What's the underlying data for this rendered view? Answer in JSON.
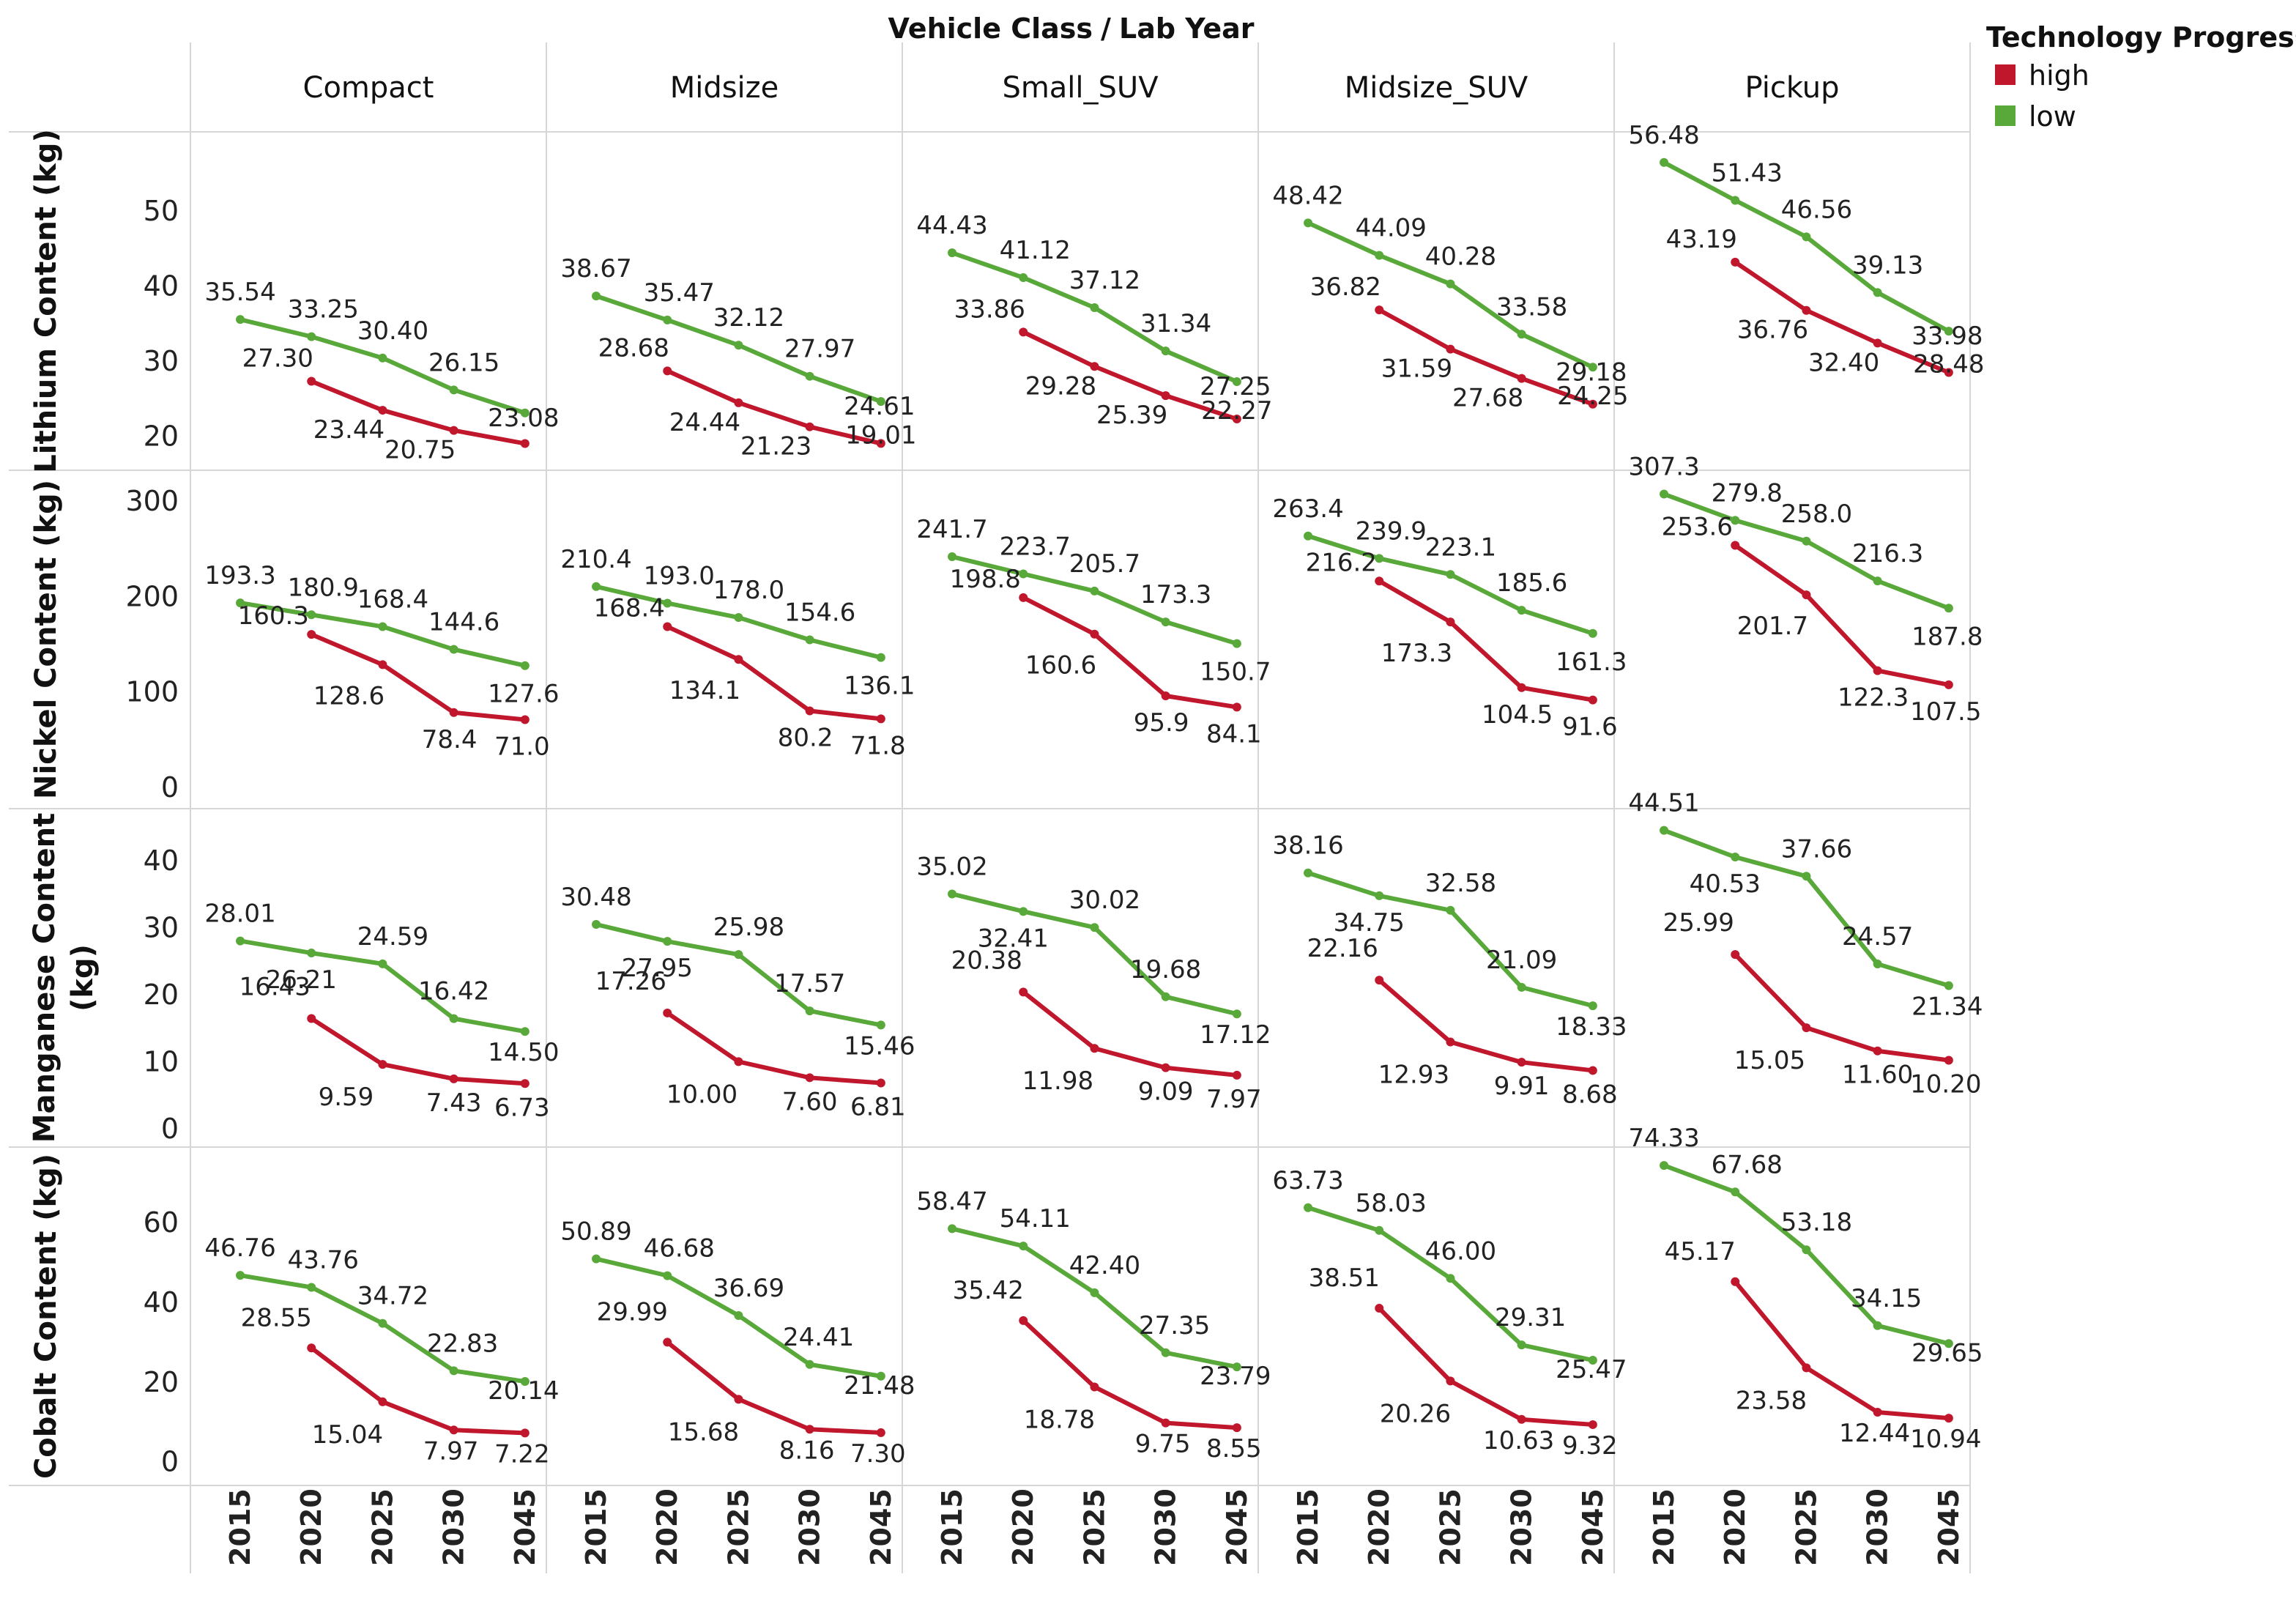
{
  "chart_data": {
    "type": "line",
    "title": "Vehicle Class",
    "title_separator": "/",
    "title_sub": "Lab Year",
    "columns": [
      "Compact",
      "Midsize",
      "Small_SUV",
      "Midsize_SUV",
      "Pickup"
    ],
    "x": [
      "2015",
      "2020",
      "2025",
      "2030",
      "2045"
    ],
    "legend": {
      "title": "Technology Progress",
      "entries": [
        {
          "name": "high",
          "color": "#c0172d"
        },
        {
          "name": "low",
          "color": "#59a83a"
        }
      ]
    },
    "rows": [
      {
        "ylabel": "Lithium Content (kg)",
        "ylim": [
          17,
          59
        ],
        "yticks": [
          "20",
          "30",
          "40",
          "50"
        ],
        "yticks_values": [
          20,
          30,
          40,
          50
        ],
        "series": {
          "low": [
            [
              35.54,
              33.25,
              30.4,
              26.15,
              23.08
            ],
            [
              38.67,
              35.47,
              32.12,
              27.97,
              24.61
            ],
            [
              44.43,
              41.12,
              37.12,
              31.34,
              27.25
            ],
            [
              48.42,
              44.09,
              40.28,
              33.58,
              29.18
            ],
            [
              56.48,
              51.43,
              46.56,
              39.13,
              33.98
            ]
          ],
          "high": [
            [
              null,
              27.3,
              23.44,
              20.75,
              19.0
            ],
            [
              null,
              28.68,
              24.44,
              21.23,
              19.01
            ],
            [
              null,
              33.86,
              29.28,
              25.39,
              22.27
            ],
            [
              null,
              36.82,
              31.59,
              27.68,
              24.25
            ],
            [
              null,
              43.19,
              36.76,
              32.4,
              28.48
            ]
          ]
        },
        "labels": {
          "low": [
            [
              "35.54",
              "33.25",
              "30.40",
              "26.15",
              "23.08"
            ],
            [
              "38.67",
              "35.47",
              "32.12",
              "27.97",
              "24.61"
            ],
            [
              "44.43",
              "41.12",
              "37.12",
              "31.34",
              "27.25"
            ],
            [
              "48.42",
              "44.09",
              "40.28",
              "33.58",
              "29.18"
            ],
            [
              "56.48",
              "51.43",
              "46.56",
              "39.13",
              "33.98"
            ]
          ],
          "high": [
            [
              null,
              "27.30",
              "23.44",
              "20.75",
              null
            ],
            [
              null,
              "28.68",
              "24.44",
              "21.23",
              "19.01"
            ],
            [
              null,
              "33.86",
              "29.28",
              "25.39",
              "22.27"
            ],
            [
              null,
              "36.82",
              "31.59",
              "27.68",
              "24.25"
            ],
            [
              null,
              "43.19",
              "36.76",
              "32.40",
              "28.48"
            ]
          ]
        }
      },
      {
        "ylabel": "Nickel Content (kg)",
        "ylim": [
          -10,
          320
        ],
        "yticks": [
          "0",
          "100",
          "200",
          "300"
        ],
        "yticks_values": [
          0,
          100,
          200,
          300
        ],
        "series": {
          "low": [
            [
              193.3,
              180.9,
              168.4,
              144.6,
              127.6
            ],
            [
              210.4,
              193.0,
              178.0,
              154.6,
              136.1
            ],
            [
              241.7,
              223.7,
              205.7,
              173.3,
              150.7
            ],
            [
              263.4,
              239.9,
              223.1,
              185.6,
              161.3
            ],
            [
              307.3,
              279.8,
              258.0,
              216.3,
              187.8
            ]
          ],
          "high": [
            [
              null,
              160.3,
              128.6,
              78.4,
              71.0
            ],
            [
              null,
              168.4,
              134.1,
              80.2,
              71.8
            ],
            [
              null,
              198.8,
              160.6,
              95.9,
              84.1
            ],
            [
              null,
              216.2,
              173.3,
              104.5,
              91.6
            ],
            [
              null,
              253.6,
              201.7,
              122.3,
              107.5
            ]
          ]
        },
        "labels": {
          "low": [
            [
              "193.3",
              "180.9",
              "168.4",
              "144.6",
              "127.6"
            ],
            [
              "210.4",
              "193.0",
              "178.0",
              "154.6",
              "136.1"
            ],
            [
              "241.7",
              "223.7",
              "205.7",
              "173.3",
              "150.7"
            ],
            [
              "263.4",
              "239.9",
              "223.1",
              "185.6",
              "161.3"
            ],
            [
              "307.3",
              "279.8",
              "258.0",
              "216.3",
              "187.8"
            ]
          ],
          "high": [
            [
              null,
              "160.3",
              "128.6",
              "78.4",
              "71.0"
            ],
            [
              null,
              "168.4",
              "134.1",
              "80.2",
              "71.8"
            ],
            [
              null,
              "198.8",
              "160.6",
              "95.9",
              "84.1"
            ],
            [
              null,
              "216.2",
              "173.3",
              "104.5",
              "91.6"
            ],
            [
              null,
              "253.6",
              "201.7",
              "122.3",
              "107.5"
            ]
          ]
        }
      },
      {
        "ylabel": "Manganese Content (kg)",
        "ylim": [
          -1,
          46
        ],
        "yticks": [
          "0",
          "10",
          "20",
          "30",
          "40"
        ],
        "yticks_values": [
          0,
          10,
          20,
          30,
          40
        ],
        "series": {
          "low": [
            [
              28.01,
              26.21,
              24.59,
              16.42,
              14.5
            ],
            [
              30.48,
              27.95,
              25.98,
              17.57,
              15.46
            ],
            [
              35.02,
              32.41,
              30.02,
              19.68,
              17.12
            ],
            [
              38.16,
              34.75,
              32.58,
              21.09,
              18.33
            ],
            [
              44.51,
              40.53,
              37.66,
              24.57,
              21.34
            ]
          ],
          "high": [
            [
              null,
              16.43,
              9.59,
              7.43,
              6.73
            ],
            [
              null,
              17.26,
              10.0,
              7.6,
              6.81
            ],
            [
              null,
              20.38,
              11.98,
              9.09,
              7.97
            ],
            [
              null,
              22.16,
              12.93,
              9.91,
              8.68
            ],
            [
              null,
              25.99,
              15.05,
              11.6,
              10.2
            ]
          ]
        },
        "labels": {
          "low": [
            [
              "28.01",
              "26.21",
              "24.59",
              "16.42",
              "14.50"
            ],
            [
              "30.48",
              "27.95",
              "25.98",
              "17.57",
              "15.46"
            ],
            [
              "35.02",
              "32.41",
              "30.02",
              "19.68",
              "17.12"
            ],
            [
              "38.16",
              "34.75",
              "32.58",
              "21.09",
              "18.33"
            ],
            [
              "44.51",
              "40.53",
              "37.66",
              "24.57",
              "21.34"
            ]
          ],
          "high": [
            [
              null,
              "16.43",
              "9.59",
              "7.43",
              "6.73"
            ],
            [
              null,
              "17.26",
              "10.00",
              "7.60",
              "6.81"
            ],
            [
              null,
              "20.38",
              "11.98",
              "9.09",
              "7.97"
            ],
            [
              null,
              "22.16",
              "12.93",
              "9.91",
              "8.68"
            ],
            [
              null,
              "25.99",
              "15.05",
              "11.60",
              "10.20"
            ]
          ]
        }
      },
      {
        "ylabel": "Cobalt Content (kg)",
        "ylim": [
          -3,
          76
        ],
        "yticks": [
          "0",
          "20",
          "40",
          "60"
        ],
        "yticks_values": [
          0,
          20,
          40,
          60
        ],
        "series": {
          "low": [
            [
              46.76,
              43.76,
              34.72,
              22.83,
              20.14
            ],
            [
              50.89,
              46.68,
              36.69,
              24.41,
              21.48
            ],
            [
              58.47,
              54.11,
              42.4,
              27.35,
              23.79
            ],
            [
              63.73,
              58.03,
              46.0,
              29.31,
              25.47
            ],
            [
              74.33,
              67.68,
              53.18,
              34.15,
              29.65
            ]
          ],
          "high": [
            [
              null,
              28.55,
              15.04,
              7.97,
              7.22
            ],
            [
              null,
              29.99,
              15.68,
              8.16,
              7.3
            ],
            [
              null,
              35.42,
              18.78,
              9.75,
              8.55
            ],
            [
              null,
              38.51,
              20.26,
              10.63,
              9.32
            ],
            [
              null,
              45.17,
              23.58,
              12.44,
              10.94
            ]
          ]
        },
        "labels": {
          "low": [
            [
              "46.76",
              "43.76",
              "34.72",
              "22.83",
              "20.14"
            ],
            [
              "50.89",
              "46.68",
              "36.69",
              "24.41",
              "21.48"
            ],
            [
              "58.47",
              "54.11",
              "42.40",
              "27.35",
              "23.79"
            ],
            [
              "63.73",
              "58.03",
              "46.00",
              "29.31",
              "25.47"
            ],
            [
              "74.33",
              "67.68",
              "53.18",
              "34.15",
              "29.65"
            ]
          ],
          "high": [
            [
              null,
              "28.55",
              "15.04",
              "7.97",
              "7.22"
            ],
            [
              null,
              "29.99",
              "15.68",
              "8.16",
              "7.30"
            ],
            [
              null,
              "35.42",
              "18.78",
              "9.75",
              "8.55"
            ],
            [
              null,
              "38.51",
              "20.26",
              "10.63",
              "9.32"
            ],
            [
              null,
              "45.17",
              "23.58",
              "12.44",
              "10.94"
            ]
          ]
        }
      }
    ]
  }
}
